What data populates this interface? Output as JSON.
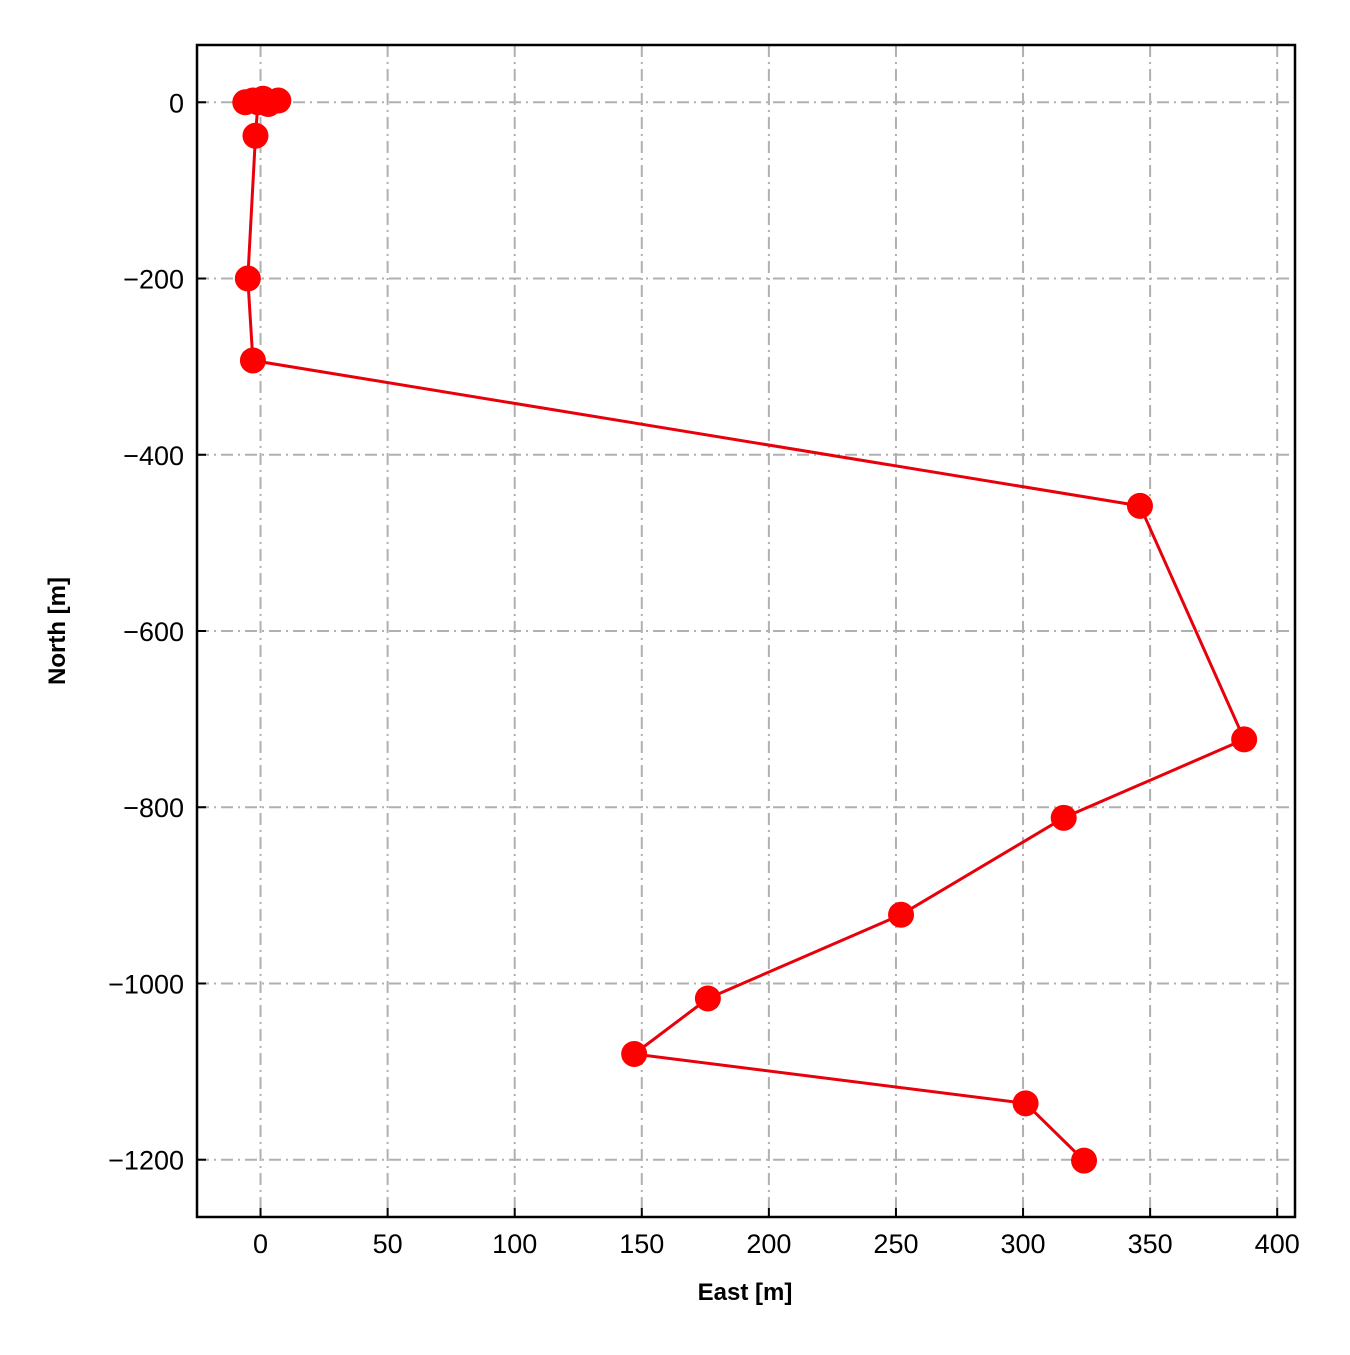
{
  "colors": {
    "series": "#ff0000",
    "line": "#e8000b",
    "grid": "#b0b0b0",
    "axis": "#000000"
  },
  "chart_data": {
    "type": "line",
    "title": "",
    "xlabel": "East [m]",
    "ylabel": "North [m]",
    "xlim": [
      -25,
      407
    ],
    "ylim": [
      -1265,
      65
    ],
    "xticks": [
      0,
      50,
      100,
      150,
      200,
      250,
      300,
      350,
      400
    ],
    "yticks": [
      0,
      -200,
      -400,
      -600,
      -800,
      -1000,
      -1200
    ],
    "xtick_labels": [
      "0",
      "50",
      "100",
      "150",
      "200",
      "250",
      "300",
      "350",
      "400"
    ],
    "ytick_labels": [
      "0",
      "−200",
      "−400",
      "−600",
      "−800",
      "−1000",
      "−1200"
    ],
    "grid": true,
    "grid_style": "dash-dot",
    "legend": "none",
    "marker": "circle",
    "series": [
      {
        "x": [
          -6,
          -3,
          0,
          1,
          4,
          7,
          3,
          -1,
          -2,
          -5,
          -3,
          346,
          387,
          316,
          252,
          176,
          147,
          301,
          324
        ],
        "y": [
          0,
          2,
          1,
          4,
          0,
          2,
          -2,
          0,
          -38,
          -200,
          -293,
          -458,
          -723,
          -812,
          -922,
          -1017,
          -1080,
          -1136,
          -1201
        ]
      }
    ]
  }
}
